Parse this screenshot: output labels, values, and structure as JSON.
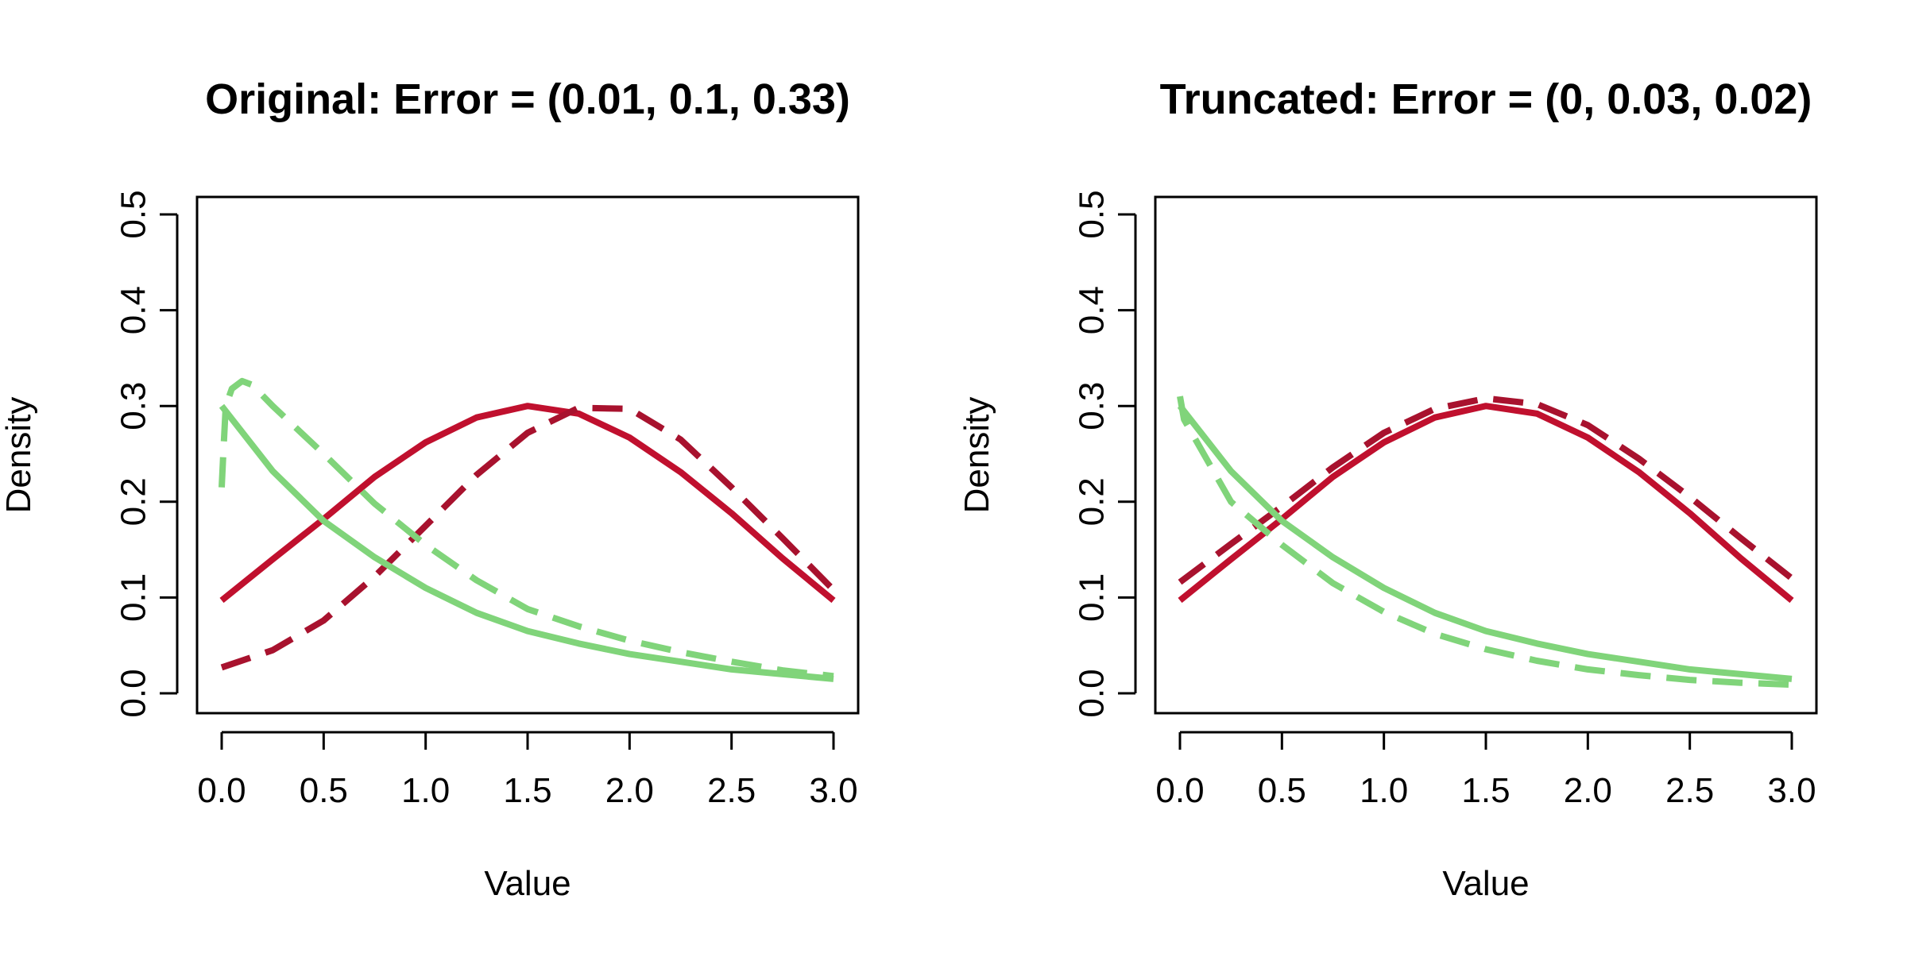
{
  "chart_data": [
    {
      "type": "line",
      "title": "Original: Error = (0.01, 0.1, 0.33)",
      "xlabel": "Value",
      "ylabel": "Density",
      "xlim": [
        0,
        3
      ],
      "ylim": [
        0,
        0.5
      ],
      "xticks": [
        "0.0",
        "0.5",
        "1.0",
        "1.5",
        "2.0",
        "2.5",
        "3.0"
      ],
      "yticks": [
        "0.0",
        "0.1",
        "0.2",
        "0.3",
        "0.4",
        "0.5"
      ],
      "grid": false,
      "legend": "none",
      "series": [
        {
          "color": "#C0102E",
          "style": "solid",
          "x": [
            0,
            0.25,
            0.5,
            0.75,
            1.0,
            1.25,
            1.5,
            1.75,
            2.0,
            2.25,
            2.5,
            2.75,
            3.0
          ],
          "y": [
            0.097,
            0.14,
            0.182,
            0.226,
            0.262,
            0.288,
            0.3,
            0.292,
            0.267,
            0.231,
            0.188,
            0.141,
            0.097
          ]
        },
        {
          "color": "#A8122E",
          "style": "dashed",
          "x": [
            0,
            0.25,
            0.5,
            0.75,
            1.0,
            1.25,
            1.5,
            1.75,
            2.0,
            2.25,
            2.5,
            2.75,
            3.0
          ],
          "y": [
            0.027,
            0.045,
            0.076,
            0.122,
            0.175,
            0.228,
            0.272,
            0.298,
            0.297,
            0.265,
            0.215,
            0.162,
            0.108
          ]
        },
        {
          "color": "#80D47A",
          "style": "solid",
          "x": [
            0,
            0.25,
            0.5,
            0.75,
            1.0,
            1.25,
            1.5,
            1.75,
            2.0,
            2.25,
            2.5,
            2.75,
            3.0
          ],
          "y": [
            0.3,
            0.232,
            0.18,
            0.142,
            0.11,
            0.084,
            0.065,
            0.052,
            0.041,
            0.033,
            0.025,
            0.02,
            0.015
          ]
        },
        {
          "color": "#80D47A",
          "style": "dashed",
          "x": [
            0.0,
            0.01,
            0.02,
            0.05,
            0.1,
            0.15,
            0.25,
            0.5,
            0.75,
            1.0,
            1.25,
            1.5,
            1.75,
            2.0,
            2.25,
            2.5,
            2.75,
            3.0
          ],
          "y": [
            0.215,
            0.26,
            0.3,
            0.318,
            0.326,
            0.322,
            0.3,
            0.25,
            0.198,
            0.155,
            0.118,
            0.088,
            0.07,
            0.055,
            0.043,
            0.033,
            0.024,
            0.018
          ]
        }
      ]
    },
    {
      "type": "line",
      "title": "Truncated: Error = (0, 0.03, 0.02)",
      "xlabel": "Value",
      "ylabel": "Density",
      "xlim": [
        0,
        3
      ],
      "ylim": [
        0,
        0.5
      ],
      "xticks": [
        "0.0",
        "0.5",
        "1.0",
        "1.5",
        "2.0",
        "2.5",
        "3.0"
      ],
      "yticks": [
        "0.0",
        "0.1",
        "0.2",
        "0.3",
        "0.4",
        "0.5"
      ],
      "grid": false,
      "legend": "none",
      "series": [
        {
          "color": "#C0102E",
          "style": "solid",
          "x": [
            0,
            0.25,
            0.5,
            0.75,
            1.0,
            1.25,
            1.5,
            1.75,
            2.0,
            2.25,
            2.5,
            2.75,
            3.0
          ],
          "y": [
            0.097,
            0.14,
            0.182,
            0.226,
            0.262,
            0.288,
            0.3,
            0.292,
            0.267,
            0.231,
            0.188,
            0.141,
            0.097
          ]
        },
        {
          "color": "#A8122E",
          "style": "dashed",
          "x": [
            0,
            0.25,
            0.5,
            0.75,
            1.0,
            1.25,
            1.5,
            1.75,
            2.0,
            2.25,
            2.5,
            2.75,
            3.0
          ],
          "y": [
            0.116,
            0.156,
            0.195,
            0.236,
            0.272,
            0.297,
            0.308,
            0.302,
            0.28,
            0.245,
            0.205,
            0.162,
            0.12
          ]
        },
        {
          "color": "#80D47A",
          "style": "solid",
          "x": [
            0,
            0.25,
            0.5,
            0.75,
            1.0,
            1.25,
            1.5,
            1.75,
            2.0,
            2.25,
            2.5,
            2.75,
            3.0
          ],
          "y": [
            0.3,
            0.232,
            0.18,
            0.142,
            0.11,
            0.084,
            0.065,
            0.052,
            0.041,
            0.033,
            0.025,
            0.02,
            0.015
          ]
        },
        {
          "color": "#80D47A",
          "style": "dashed",
          "x": [
            0.0,
            0.02,
            0.25,
            0.5,
            0.75,
            1.0,
            1.25,
            1.5,
            1.75,
            2.0,
            2.25,
            2.5,
            2.75,
            3.0
          ],
          "y": [
            0.31,
            0.286,
            0.2,
            0.155,
            0.115,
            0.085,
            0.062,
            0.046,
            0.034,
            0.025,
            0.019,
            0.014,
            0.011,
            0.009
          ]
        }
      ]
    }
  ]
}
